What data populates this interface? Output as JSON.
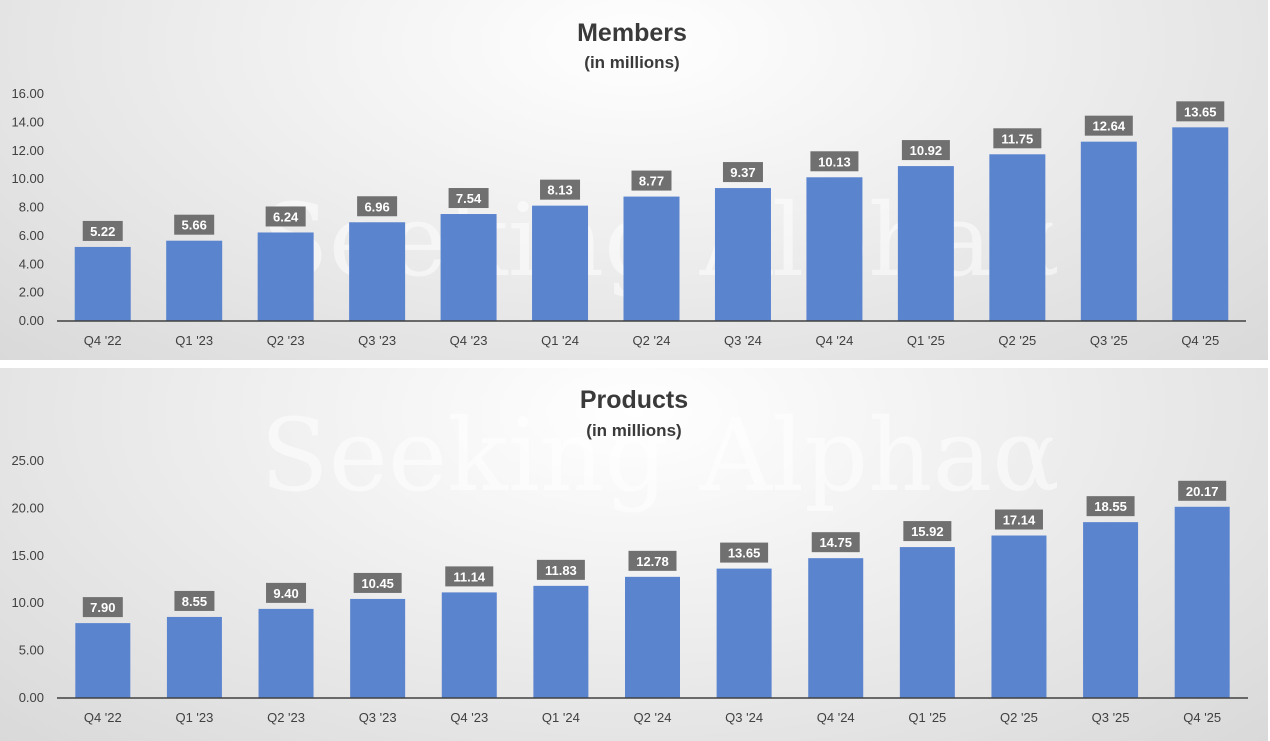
{
  "watermark": "Seeking Alphaα",
  "chart_data": [
    {
      "type": "bar",
      "title": "Members",
      "subtitle": "(in millions)",
      "categories": [
        "Q4 '22",
        "Q1 '23",
        "Q2 '23",
        "Q3 '23",
        "Q4 '23",
        "Q1 '24",
        "Q2 '24",
        "Q3 '24",
        "Q4 '24",
        "Q1 '25",
        "Q2 '25",
        "Q3 '25",
        "Q4 '25"
      ],
      "values": [
        5.22,
        5.66,
        6.24,
        6.96,
        7.54,
        8.13,
        8.77,
        9.37,
        10.13,
        10.92,
        11.75,
        12.64,
        13.65
      ],
      "data_labels": [
        "5.22",
        "5.66",
        "6.24",
        "6.96",
        "7.54",
        "8.13",
        "8.77",
        "9.37",
        "10.13",
        "10.92",
        "11.75",
        "12.64",
        "13.65"
      ],
      "yticks": [
        "0.00",
        "2.00",
        "4.00",
        "6.00",
        "8.00",
        "10.00",
        "12.00",
        "14.00",
        "16.00"
      ],
      "ylim": [
        0,
        16
      ],
      "xlabel": "",
      "ylabel": "",
      "grid": false,
      "legend": "none",
      "bar_color": "#5b84cf",
      "label_bg_color": "#707070"
    },
    {
      "type": "bar",
      "title": "Products",
      "subtitle": "(in millions)",
      "categories": [
        "Q4 '22",
        "Q1 '23",
        "Q2 '23",
        "Q3 '23",
        "Q4 '23",
        "Q1 '24",
        "Q2 '24",
        "Q3 '24",
        "Q4 '24",
        "Q1 '25",
        "Q2 '25",
        "Q3 '25",
        "Q4 '25"
      ],
      "values": [
        7.9,
        8.55,
        9.4,
        10.45,
        11.14,
        11.83,
        12.78,
        13.65,
        14.75,
        15.92,
        17.14,
        18.55,
        20.17
      ],
      "data_labels": [
        "7.90",
        "8.55",
        "9.40",
        "10.45",
        "11.14",
        "11.83",
        "12.78",
        "13.65",
        "14.75",
        "15.92",
        "17.14",
        "18.55",
        "20.17"
      ],
      "yticks": [
        "0.00",
        "5.00",
        "10.00",
        "15.00",
        "20.00",
        "25.00"
      ],
      "ylim": [
        0,
        25
      ],
      "xlabel": "",
      "ylabel": "",
      "grid": false,
      "legend": "none",
      "bar_color": "#5b84cf",
      "label_bg_color": "#707070"
    }
  ]
}
